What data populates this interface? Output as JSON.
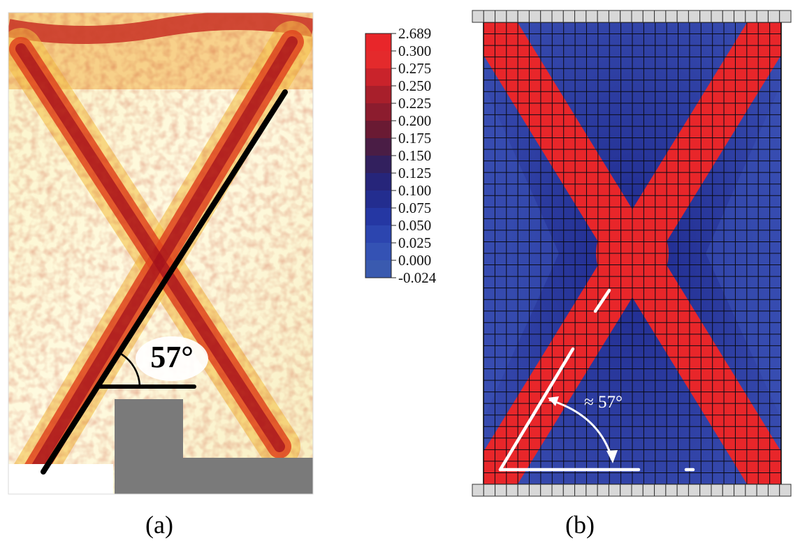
{
  "panel_a": {
    "caption": "(a)",
    "angle_label": "57°"
  },
  "panel_b": {
    "caption": "(b)",
    "angle_label": "≈ 57°",
    "mesh": {
      "columns": 26,
      "rows": 40
    },
    "clamp_blocks": 28
  },
  "legend": {
    "entries": [
      "2.689",
      "0.300",
      "0.275",
      "0.250",
      "0.225",
      "0.200",
      "0.175",
      "0.150",
      "0.125",
      "0.100",
      "0.075",
      "0.050",
      "0.025",
      "0.000",
      "-0.024"
    ],
    "colors": [
      "#e8262a",
      "#e42a2c",
      "#c9232b",
      "#a81f2b",
      "#8c1c2e",
      "#6a1a33",
      "#4a1d45",
      "#32205e",
      "#26257a",
      "#232d8f",
      "#2537a3",
      "#2c45af",
      "#3452b4",
      "#3a5aaf"
    ]
  },
  "colors": {
    "band_red": "#e8262a",
    "field_blue": "#26309a",
    "field_blue_light": "#3447b0",
    "clamp_gray": "#d8d8d8",
    "support_gray": "#7a7a7a"
  }
}
